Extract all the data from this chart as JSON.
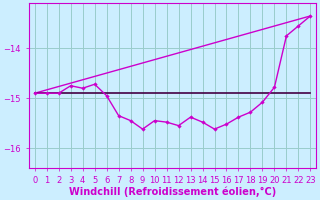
{
  "background_color": "#cceeff",
  "line_color_magenta": "#cc00cc",
  "line_color_dark": "#440044",
  "grid_color": "#99cccc",
  "xlabel": "Windchill (Refroidissement éolien,°C)",
  "xlabel_fontsize": 7,
  "tick_fontsize": 6,
  "xlim": [
    -0.5,
    23.5
  ],
  "ylim": [
    -16.4,
    -13.1
  ],
  "yticks": [
    -16,
    -15,
    -14
  ],
  "xticks": [
    0,
    1,
    2,
    3,
    4,
    5,
    6,
    7,
    8,
    9,
    10,
    11,
    12,
    13,
    14,
    15,
    16,
    17,
    18,
    19,
    20,
    21,
    22,
    23
  ],
  "flat_line_x": [
    0,
    19,
    23
  ],
  "flat_line_y": [
    -14.9,
    -14.9,
    -14.9
  ],
  "diag_line_x": [
    0,
    23
  ],
  "diag_line_y": [
    -14.9,
    -13.35
  ],
  "curve_x": [
    0,
    1,
    2,
    3,
    4,
    5,
    6,
    7,
    8,
    9,
    10,
    11,
    12,
    13,
    14,
    15,
    16,
    17,
    18,
    19,
    20,
    21,
    22,
    23
  ],
  "curve_y": [
    -14.9,
    -14.9,
    -14.9,
    -14.75,
    -14.8,
    -14.72,
    -14.95,
    -15.35,
    -15.45,
    -15.62,
    -15.45,
    -15.48,
    -15.55,
    -15.38,
    -15.48,
    -15.62,
    -15.52,
    -15.38,
    -15.28,
    -15.08,
    -14.78,
    -13.75,
    -13.55,
    -13.35
  ]
}
